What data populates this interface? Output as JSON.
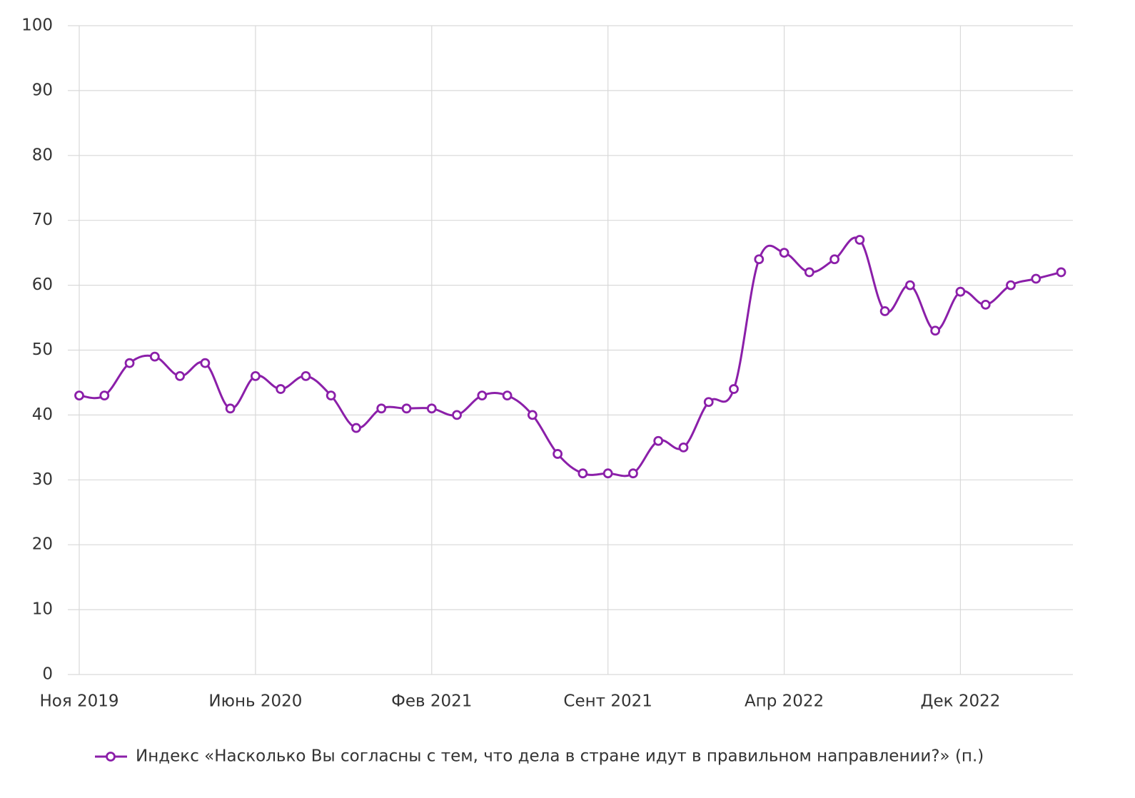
{
  "chart_data": {
    "type": "line",
    "categories": [
      "Ноя 2019",
      null,
      null,
      null,
      null,
      null,
      null,
      "Июнь 2020",
      null,
      null,
      null,
      null,
      null,
      null,
      "Фев 2021",
      null,
      null,
      null,
      null,
      null,
      null,
      "Сент 2021",
      null,
      null,
      null,
      null,
      null,
      null,
      "Апр 2022",
      null,
      null,
      null,
      null,
      null,
      null,
      "Дек 2022",
      null,
      null,
      null,
      null
    ],
    "series": [
      {
        "name": "Индекс «Насколько Вы согласны с тем, что дела в стране идут в правильном направлении?» (п.)",
        "color": "#8b1fa9",
        "values": [
          43,
          43,
          48,
          49,
          46,
          48,
          41,
          46,
          44,
          46,
          43,
          38,
          41,
          41,
          41,
          40,
          43,
          43,
          40,
          34,
          31,
          31,
          31,
          36,
          35,
          42,
          44,
          64,
          65,
          62,
          64,
          67,
          56,
          60,
          53,
          59,
          57,
          60,
          61,
          62
        ]
      }
    ],
    "ylim": [
      0,
      100
    ],
    "yticks": [
      0,
      10,
      20,
      30,
      40,
      50,
      60,
      70,
      80,
      90,
      100
    ],
    "grid": true,
    "legend": "bottom"
  }
}
